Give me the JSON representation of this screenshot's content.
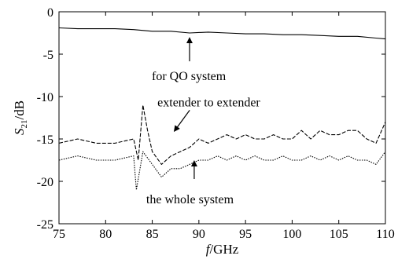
{
  "chart_data": {
    "type": "line",
    "xlabel": "f/GHz",
    "ylabel": "S21/dB",
    "xlim": [
      75,
      110
    ],
    "ylim": [
      -25,
      0
    ],
    "xticks": [
      75,
      80,
      85,
      90,
      95,
      100,
      105,
      110
    ],
    "yticks": [
      0,
      -5,
      -10,
      -15,
      -20,
      -25
    ],
    "grid": false,
    "series": [
      {
        "name": "for QO system",
        "style": "solid",
        "x": [
          75,
          77,
          79,
          81,
          83,
          85,
          87,
          89,
          91,
          93,
          95,
          97,
          99,
          101,
          103,
          105,
          107,
          109,
          110
        ],
        "values": [
          -1.9,
          -2.0,
          -2.0,
          -2.0,
          -2.1,
          -2.3,
          -2.3,
          -2.5,
          -2.4,
          -2.5,
          -2.6,
          -2.6,
          -2.7,
          -2.7,
          -2.8,
          -2.9,
          -2.9,
          -3.1,
          -3.2
        ]
      },
      {
        "name": "extender to extender",
        "style": "dashed",
        "x": [
          75,
          77,
          79,
          81,
          83,
          83.5,
          84,
          84.5,
          85,
          86,
          87,
          88,
          89,
          90,
          91,
          92,
          93,
          94,
          95,
          96,
          97,
          98,
          99,
          100,
          101,
          102,
          103,
          104,
          105,
          106,
          107,
          108,
          109,
          110
        ],
        "values": [
          -15.5,
          -15.0,
          -15.5,
          -15.5,
          -15.0,
          -17.5,
          -11.0,
          -14.0,
          -16.5,
          -18.0,
          -17.0,
          -16.5,
          -16.0,
          -15.0,
          -15.5,
          -15.0,
          -14.5,
          -15.0,
          -14.5,
          -15.0,
          -15.0,
          -14.5,
          -15.0,
          -15.0,
          -14.0,
          -15.0,
          -14.0,
          -14.5,
          -14.5,
          -14.0,
          -14.0,
          -15.0,
          -15.5,
          -13.0
        ]
      },
      {
        "name": "the whole system",
        "style": "dotted",
        "x": [
          75,
          77,
          79,
          81,
          83,
          83.3,
          84,
          85,
          86,
          87,
          88,
          89,
          90,
          91,
          92,
          93,
          94,
          95,
          96,
          97,
          98,
          99,
          100,
          101,
          102,
          103,
          104,
          105,
          106,
          107,
          108,
          109,
          110
        ],
        "values": [
          -17.5,
          -17.0,
          -17.5,
          -17.5,
          -17.0,
          -21.0,
          -16.5,
          -18.0,
          -19.5,
          -18.5,
          -18.5,
          -18.0,
          -17.5,
          -17.5,
          -17.0,
          -17.5,
          -17.0,
          -17.5,
          -17.0,
          -17.5,
          -17.5,
          -17.0,
          -17.5,
          -17.5,
          -17.0,
          -17.5,
          -17.0,
          -17.5,
          -17.0,
          -17.5,
          -17.5,
          -18.0,
          -16.5
        ]
      }
    ],
    "annotations": [
      {
        "text": "for QO system",
        "x": 89,
        "y": -2.6
      },
      {
        "text": "extender to extender",
        "x": 88,
        "y": -15.5
      },
      {
        "text": "the whole system",
        "x": 89.5,
        "y": -17.5
      }
    ]
  }
}
